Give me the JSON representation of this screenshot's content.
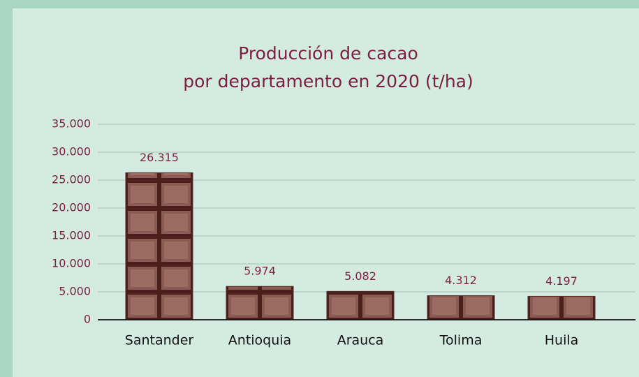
{
  "chart_data": {
    "type": "bar",
    "title": [
      "Producción de cacao",
      "por departamento en 2020 (t/ha)"
    ],
    "categories": [
      "Santander",
      "Antioquia",
      "Arauca",
      "Tolima",
      "Huila"
    ],
    "values": [
      26315,
      5974,
      5082,
      4312,
      4197
    ],
    "value_labels": [
      "26.315",
      "5.974",
      "5.082",
      "4.312",
      "4.197"
    ],
    "color": "#5a2a25",
    "ylim": [
      0,
      35000
    ],
    "yticks": [
      0,
      {
        "value": 5000,
        "label": "5.000"
      },
      {
        "value": 10000,
        "label": "10.000"
      },
      {
        "value": 15000,
        "label": "15.000"
      },
      {
        "value": 20000,
        "label": "20.000"
      },
      {
        "value": 25000,
        "label": "25.000"
      },
      {
        "value": 30000,
        "label": "30.000"
      },
      {
        "value": 35000,
        "label": "35.000"
      }
    ],
    "grid": true
  }
}
